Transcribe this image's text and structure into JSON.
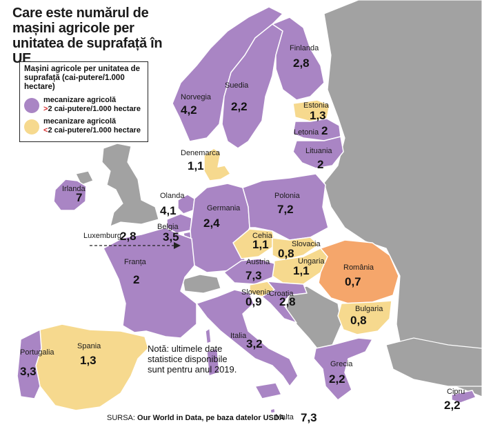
{
  "title": "Care este numărul de mașini agricole per unitatea de suprafață în UE",
  "legend": {
    "heading": "Mașini agricole per unitatea de suprafață (cai-putere/1.000 hectare)",
    "high": {
      "label_a": "mecanizare agricolă",
      "sign": ">",
      "label_b": "2 cai-putere/1.000 hectare",
      "color": "#a985c4"
    },
    "low": {
      "label_a": "mecanizare agricolă",
      "sign": "<",
      "label_b": "2 cai-putere/1.000 hectare",
      "color": "#f6d98e"
    }
  },
  "colors": {
    "sea": "#ffffff",
    "non_eu": "#a2a2a2",
    "high": "#a985c4",
    "low": "#f6d98e",
    "romania": "#f5a66b",
    "border": "#ffffff",
    "arrow": "#222222"
  },
  "countries": [
    {
      "id": "finlanda",
      "name": "Finlanda",
      "value": "2,8",
      "category": "high"
    },
    {
      "id": "suedia",
      "name": "Suedia",
      "value": "2,2",
      "category": "high"
    },
    {
      "id": "norvegia",
      "name": "Norvegia",
      "value": "4,2",
      "category": "high"
    },
    {
      "id": "estonia",
      "name": "Estonia",
      "value": "1,3",
      "category": "low"
    },
    {
      "id": "letonia",
      "name": "Letonia",
      "value": "2",
      "category": "high"
    },
    {
      "id": "lituania",
      "name": "Lituania",
      "value": "2",
      "category": "high"
    },
    {
      "id": "danemarca",
      "name": "Denemarca",
      "value": "1,1",
      "category": "low"
    },
    {
      "id": "irlanda",
      "name": "Irlanda",
      "value": "7",
      "category": "high"
    },
    {
      "id": "olanda",
      "name": "Olanda",
      "value": "4,1",
      "category": "high"
    },
    {
      "id": "belgia",
      "name": "Belgia",
      "value": "3,5",
      "category": "high"
    },
    {
      "id": "luxemburg",
      "name": "Luxemburg",
      "value": "2,8",
      "category": "high"
    },
    {
      "id": "germania",
      "name": "Germania",
      "value": "2,4",
      "category": "high"
    },
    {
      "id": "polonia",
      "name": "Polonia",
      "value": "7,2",
      "category": "high"
    },
    {
      "id": "cehia",
      "name": "Cehia",
      "value": "1,1",
      "category": "low"
    },
    {
      "id": "slovacia",
      "name": "Slovacia",
      "value": "0,8",
      "category": "low"
    },
    {
      "id": "ungaria",
      "name": "Ungaria",
      "value": "1,1",
      "category": "low"
    },
    {
      "id": "romania",
      "name": "România",
      "value": "0,7",
      "category": "highlight"
    },
    {
      "id": "austria",
      "name": "Austria",
      "value": "7,3",
      "category": "high"
    },
    {
      "id": "slovenia",
      "name": "Slovenia",
      "value": "0,9",
      "category": "low"
    },
    {
      "id": "croatia",
      "name": "Croația",
      "value": "2,8",
      "category": "high"
    },
    {
      "id": "bulgaria",
      "name": "Bulgaria",
      "value": "0,8",
      "category": "low"
    },
    {
      "id": "franta",
      "name": "Franța",
      "value": "2",
      "category": "high"
    },
    {
      "id": "italia",
      "name": "Italia",
      "value": "3,2",
      "category": "high"
    },
    {
      "id": "spania",
      "name": "Spania",
      "value": "1,3",
      "category": "low"
    },
    {
      "id": "portugalia",
      "name": "Portugalia",
      "value": "3,3",
      "category": "high"
    },
    {
      "id": "grecia",
      "name": "Grecia",
      "value": "2,2",
      "category": "high"
    },
    {
      "id": "cipru",
      "name": "Cipru",
      "value": "2,2",
      "category": "high"
    },
    {
      "id": "malta",
      "name": "Malta",
      "value": "7,3",
      "category": "high"
    }
  ],
  "note": "Notă: ultimele date statistice disponibile sunt pentru anul 2019.",
  "source": {
    "prefix": "SURSA:",
    "text": "Our World in Data, pe baza datelor USDA"
  }
}
